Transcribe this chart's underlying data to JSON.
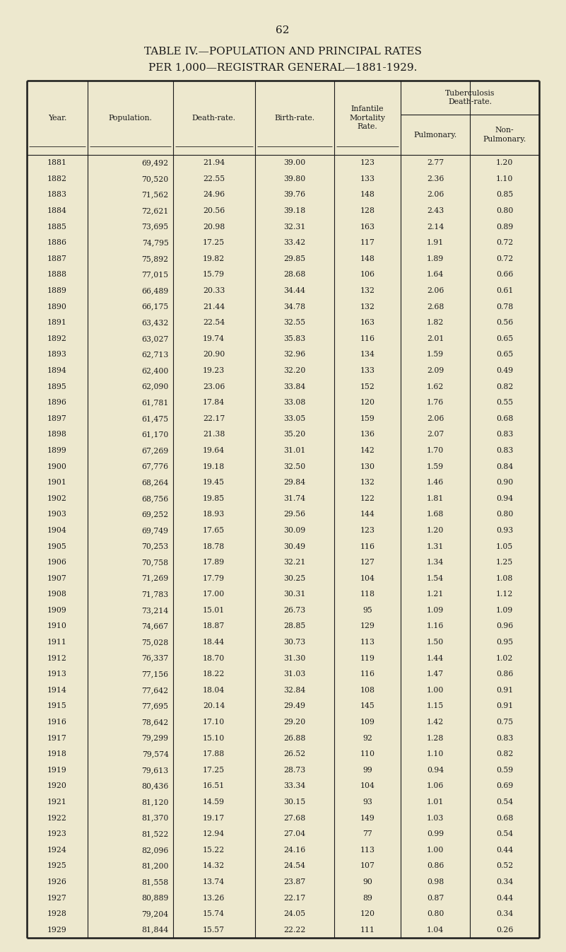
{
  "page_number": "62",
  "title_line1": "TABLE IV.—POPULATION AND PRINCIPAL RATES",
  "title_line2": "PER 1,000—REGISTRAR GENERAL—1881-1929.",
  "rows": [
    [
      "1881",
      "69,492",
      "21.94",
      "39.00",
      "123",
      "2.77",
      "1.20"
    ],
    [
      "1882",
      "70,520",
      "22.55",
      "39.80",
      "133",
      "2.36",
      "1.10"
    ],
    [
      "1883",
      "71,562",
      "24.96",
      "39.76",
      "148",
      "2.06",
      "0.85"
    ],
    [
      "1884",
      "72,621",
      "20.56",
      "39.18",
      "128",
      "2.43",
      "0.80"
    ],
    [
      "1885",
      "73,695",
      "20.98",
      "32.31",
      "163",
      "2.14",
      "0.89"
    ],
    [
      "1886",
      "74,795",
      "17.25",
      "33.42",
      "117",
      "1.91",
      "0.72"
    ],
    [
      "1887",
      "75,892",
      "19.82",
      "29.85",
      "148",
      "1.89",
      "0.72"
    ],
    [
      "1888",
      "77,015",
      "15.79",
      "28.68",
      "106",
      "1.64",
      "0.66"
    ],
    [
      "1889",
      "66,489",
      "20.33",
      "34.44",
      "132",
      "2.06",
      "0.61"
    ],
    [
      "1890",
      "66,175",
      "21.44",
      "34.78",
      "132",
      "2.68",
      "0.78"
    ],
    [
      "1891",
      "63,432",
      "22.54",
      "32.55",
      "163",
      "1.82",
      "0.56"
    ],
    [
      "1892",
      "63,027",
      "19.74",
      "35.83",
      "116",
      "2.01",
      "0.65"
    ],
    [
      "1893",
      "62,713",
      "20.90",
      "32.96",
      "134",
      "1.59",
      "0.65"
    ],
    [
      "1894",
      "62,400",
      "19.23",
      "32.20",
      "133",
      "2.09",
      "0.49"
    ],
    [
      "1895",
      "62,090",
      "23.06",
      "33.84",
      "152",
      "1.62",
      "0.82"
    ],
    [
      "1896",
      "61,781",
      "17.84",
      "33.08",
      "120",
      "1.76",
      "0.55"
    ],
    [
      "1897",
      "61,475",
      "22.17",
      "33.05",
      "159",
      "2.06",
      "0.68"
    ],
    [
      "1898",
      "61,170",
      "21.38",
      "35.20",
      "136",
      "2.07",
      "0.83"
    ],
    [
      "1899",
      "67,269",
      "19.64",
      "31.01",
      "142",
      "1.70",
      "0.83"
    ],
    [
      "1900",
      "67,776",
      "19.18",
      "32.50",
      "130",
      "1.59",
      "0.84"
    ],
    [
      "1901",
      "68,264",
      "19.45",
      "29.84",
      "132",
      "1.46",
      "0.90"
    ],
    [
      "1902",
      "68,756",
      "19.85",
      "31.74",
      "122",
      "1.81",
      "0.94"
    ],
    [
      "1903",
      "69,252",
      "18.93",
      "29.56",
      "144",
      "1.68",
      "0.80"
    ],
    [
      "1904",
      "69,749",
      "17.65",
      "30.09",
      "123",
      "1.20",
      "0.93"
    ],
    [
      "1905",
      "70,253",
      "18.78",
      "30.49",
      "116",
      "1.31",
      "1.05"
    ],
    [
      "1906",
      "70,758",
      "17.89",
      "32.21",
      "127",
      "1.34",
      "1.25"
    ],
    [
      "1907",
      "71,269",
      "17.79",
      "30.25",
      "104",
      "1.54",
      "1.08"
    ],
    [
      "1908",
      "71,783",
      "17.00",
      "30.31",
      "118",
      "1.21",
      "1.12"
    ],
    [
      "1909",
      "73,214",
      "15.01",
      "26.73",
      "95",
      "1.09",
      "1.09"
    ],
    [
      "1910",
      "74,667",
      "18.87",
      "28.85",
      "129",
      "1.16",
      "0.96"
    ],
    [
      "1911",
      "75,028",
      "18.44",
      "30.73",
      "113",
      "1.50",
      "0.95"
    ],
    [
      "1912",
      "76,337",
      "18.70",
      "31.30",
      "119",
      "1.44",
      "1.02"
    ],
    [
      "1913",
      "77,156",
      "18.22",
      "31.03",
      "116",
      "1.47",
      "0.86"
    ],
    [
      "1914",
      "77,642",
      "18.04",
      "32.84",
      "108",
      "1.00",
      "0.91"
    ],
    [
      "1915",
      "77,695",
      "20.14",
      "29.49",
      "145",
      "1.15",
      "0.91"
    ],
    [
      "1916",
      "78,642",
      "17.10",
      "29.20",
      "109",
      "1.42",
      "0.75"
    ],
    [
      "1917",
      "79,299",
      "15.10",
      "26.88",
      "92",
      "1.28",
      "0.83"
    ],
    [
      "1918",
      "79,574",
      "17.88",
      "26.52",
      "110",
      "1.10",
      "0.82"
    ],
    [
      "1919",
      "79,613",
      "17.25",
      "28.73",
      "99",
      "0.94",
      "0.59"
    ],
    [
      "1920",
      "80,436",
      "16.51",
      "33.34",
      "104",
      "1.06",
      "0.69"
    ],
    [
      "1921",
      "81,120",
      "14.59",
      "30.15",
      "93",
      "1.01",
      "0.54"
    ],
    [
      "1922",
      "81,370",
      "19.17",
      "27.68",
      "149",
      "1.03",
      "0.68"
    ],
    [
      "1923",
      "81,522",
      "12.94",
      "27.04",
      "77",
      "0.99",
      "0.54"
    ],
    [
      "1924",
      "82,096",
      "15.22",
      "24.16",
      "113",
      "1.00",
      "0.44"
    ],
    [
      "1925",
      "81,200",
      "14.32",
      "24.54",
      "107",
      "0.86",
      "0.52"
    ],
    [
      "1926",
      "81,558",
      "13.74",
      "23.87",
      "90",
      "0.98",
      "0.34"
    ],
    [
      "1927",
      "80,889",
      "13.26",
      "22.17",
      "89",
      "0.87",
      "0.44"
    ],
    [
      "1928",
      "79,204",
      "15.74",
      "24.05",
      "120",
      "0.80",
      "0.34"
    ],
    [
      "1929",
      "81,844",
      "15.57",
      "22.22",
      "111",
      "1.04",
      "0.26"
    ]
  ],
  "bg_color": "#ede8ce",
  "text_color": "#1a1a1a",
  "font_size": 7.8,
  "title_fontsize": 11.0,
  "pagenum_fontsize": 11.0
}
